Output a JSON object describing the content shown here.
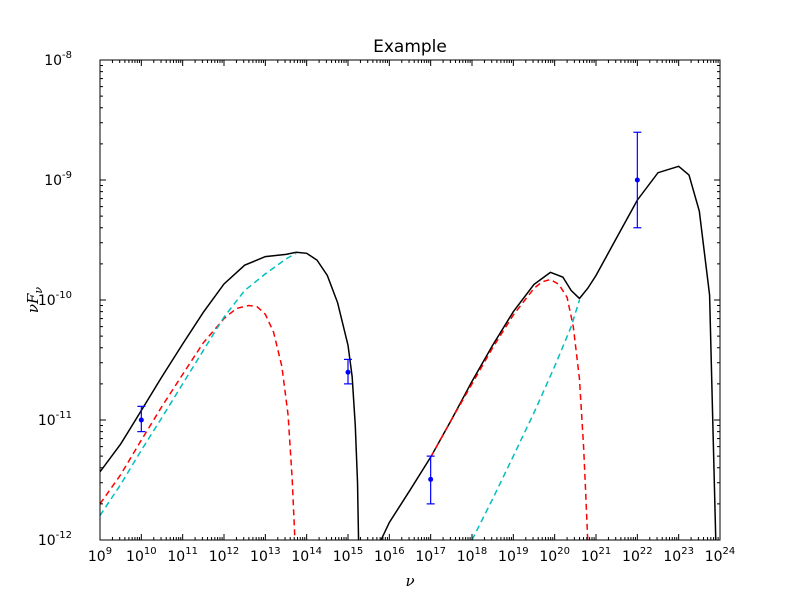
{
  "chart_data": {
    "type": "line",
    "title": "Example",
    "xlabel": "ν",
    "ylabel_main": "νF",
    "ylabel_sub": "ν",
    "xscale": "log",
    "yscale": "log",
    "xlim": [
      1000000000.0,
      1e+24
    ],
    "ylim": [
      1e-12,
      1e-08
    ],
    "grid": false,
    "legend": "none",
    "x_ticks": [
      {
        "base": "10",
        "exp": "9",
        "value": 1000000000.0
      },
      {
        "base": "10",
        "exp": "10",
        "value": 10000000000.0
      },
      {
        "base": "10",
        "exp": "11",
        "value": 100000000000.0
      },
      {
        "base": "10",
        "exp": "12",
        "value": 1000000000000.0
      },
      {
        "base": "10",
        "exp": "13",
        "value": 10000000000000.0
      },
      {
        "base": "10",
        "exp": "14",
        "value": 100000000000000.0
      },
      {
        "base": "10",
        "exp": "15",
        "value": 1000000000000000.0
      },
      {
        "base": "10",
        "exp": "16",
        "value": 1e+16
      },
      {
        "base": "10",
        "exp": "17",
        "value": 1e+17
      },
      {
        "base": "10",
        "exp": "18",
        "value": 1e+18
      },
      {
        "base": "10",
        "exp": "19",
        "value": 1e+19
      },
      {
        "base": "10",
        "exp": "20",
        "value": 1e+20
      },
      {
        "base": "10",
        "exp": "21",
        "value": 1e+21
      },
      {
        "base": "10",
        "exp": "22",
        "value": 1e+22
      },
      {
        "base": "10",
        "exp": "23",
        "value": 1e+23
      },
      {
        "base": "10",
        "exp": "24",
        "value": 1e+24
      }
    ],
    "y_ticks": [
      {
        "base": "10",
        "exp": "-12",
        "value": 1e-12
      },
      {
        "base": "10",
        "exp": "-11",
        "value": 1e-11
      },
      {
        "base": "10",
        "exp": "-10",
        "value": 1e-10
      },
      {
        "base": "10",
        "exp": "-9",
        "value": 1e-09
      },
      {
        "base": "10",
        "exp": "-8",
        "value": 1e-08
      }
    ],
    "series": [
      {
        "color": "#000000",
        "style": "solid",
        "x": [
          1000000000.0,
          3160000000.0,
          10000000000.0,
          31600000000.0,
          100000000000.0,
          316000000000.0,
          1000000000000.0,
          3160000000000.0,
          10000000000000.0,
          31600000000000.0,
          56000000000000.0,
          100000000000000.0,
          178000000000000.0,
          316000000000000.0,
          560000000000000.0,
          1000000000000000.0,
          1260000000000000.0,
          1500000000000000.0,
          1700000000000000.0,
          1800000000000000.0
        ],
        "y": [
          3.7e-12,
          6.3e-12,
          1.2e-11,
          2.3e-11,
          4.3e-11,
          7.9e-11,
          1.36e-10,
          1.95e-10,
          2.3e-10,
          2.4e-10,
          2.5e-10,
          2.45e-10,
          2.15e-10,
          1.6e-10,
          9.5e-11,
          4.2e-11,
          2.3e-11,
          9e-12,
          3e-12,
          1e-12
        ]
      },
      {
        "color": "#000000",
        "style": "solid",
        "x": [
          6300000000000000.0,
          1e+16,
          3.16e+16,
          1e+17,
          3.16e+17,
          1e+18,
          3.16e+18,
          1e+19,
          3.16e+19,
          7.9e+19,
          1.58e+20,
          2.51e+20,
          3.98e+20,
          6.3e+20,
          1e+21,
          3.16e+21,
          1e+22,
          3.16e+22,
          1e+23,
          1.78e+23,
          3.16e+23,
          5.6e+23,
          7.9e+23
        ],
        "y": [
          1e-12,
          1.4e-12,
          2.6e-12,
          4.9e-12,
          1e-11,
          2.1e-11,
          4.2e-11,
          8e-11,
          1.35e-10,
          1.7e-10,
          1.55e-10,
          1.2e-10,
          1.03e-10,
          1.25e-10,
          1.6e-10,
          3.3e-10,
          6.8e-10,
          1.15e-09,
          1.3e-09,
          1.1e-09,
          5.5e-10,
          1.1e-10,
          1e-12
        ]
      },
      {
        "color": "#ff0000",
        "style": "dashed",
        "x": [
          1000000000.0,
          3160000000.0,
          10000000000.0,
          31600000000.0,
          100000000000.0,
          316000000000.0,
          1000000000000.0,
          2000000000000.0,
          3980000000000.0,
          6300000000000.0,
          10000000000000.0,
          15800000000000.0,
          25100000000000.0,
          35500000000000.0,
          44700000000000.0,
          52000000000000.0
        ],
        "y": [
          2e-12,
          3.5e-12,
          6.8e-12,
          1.3e-11,
          2.4e-11,
          4.4e-11,
          7e-11,
          8.5e-11,
          9e-11,
          8.8e-11,
          7.6e-11,
          5.4e-11,
          2.8e-11,
          1.1e-11,
          3.2e-12,
          1e-12
        ]
      },
      {
        "color": "#ff0000",
        "style": "dashed",
        "x": [
          1e+17,
          3.16e+17,
          1e+18,
          3.16e+18,
          1e+19,
          3.16e+19,
          5e+19,
          7.9e+19,
          1.26e+20,
          2e+20,
          2.82e+20,
          3.98e+20,
          5.01e+20,
          5.62e+20,
          6.3e+20
        ],
        "y": [
          4.9e-12,
          1e-11,
          2e-11,
          4e-11,
          7.5e-11,
          1.25e-10,
          1.42e-10,
          1.48e-10,
          1.35e-10,
          1.05e-10,
          6e-11,
          2.2e-11,
          6e-12,
          2.5e-12,
          1e-12
        ]
      },
      {
        "color": "#00bfbf",
        "style": "dashed",
        "x": [
          1000000000.0,
          3160000000.0,
          10000000000.0,
          31600000000.0,
          100000000000.0,
          316000000000.0,
          1000000000000.0,
          3160000000000.0,
          10000000000000.0,
          31600000000000.0,
          56000000000000.0
        ],
        "y": [
          1.6e-12,
          2.9e-12,
          5.6e-12,
          1.05e-11,
          2e-11,
          3.8e-11,
          7.2e-11,
          1.2e-10,
          1.65e-10,
          2.2e-10,
          2.45e-10
        ]
      },
      {
        "color": "#00bfbf",
        "style": "dashed",
        "x": [
          1e+18,
          3.16e+18,
          1e+19,
          3.16e+19,
          1e+20,
          2.51e+20,
          3.98e+20
        ],
        "y": [
          1e-12,
          2.2e-12,
          5e-12,
          1.15e-11,
          2.8e-11,
          6e-11,
          1e-10
        ]
      }
    ],
    "points": [
      {
        "x": 10000000000.0,
        "y": 1e-11,
        "ylow": 8e-12,
        "yhigh": 1.3e-11,
        "color": "#0000ff"
      },
      {
        "x": 1000000000000000.0,
        "y": 2.5e-11,
        "ylow": 2e-11,
        "yhigh": 3.2e-11,
        "color": "#0000ff"
      },
      {
        "x": 1e+17,
        "y": 3.2e-12,
        "ylow": 2e-12,
        "yhigh": 5e-12,
        "color": "#0000ff"
      },
      {
        "x": 1e+22,
        "y": 1e-09,
        "ylow": 4e-10,
        "yhigh": 2.5e-09,
        "color": "#0000ff"
      }
    ]
  }
}
